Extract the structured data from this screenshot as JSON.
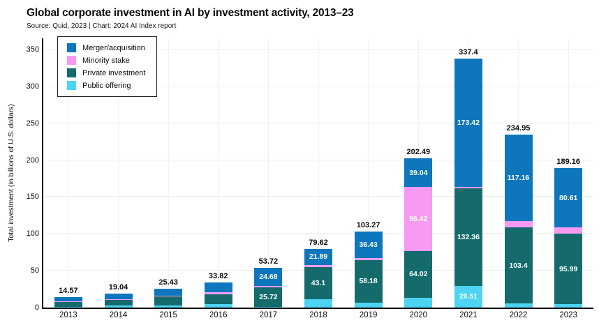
{
  "chart_data": {
    "type": "stacked_bar",
    "title": "Global corporate investment in AI by investment activity, 2013–23",
    "source_note": "Source: Quid, 2023 | Chart: 2024 AI Index report",
    "xlabel": "",
    "ylabel": "Total investment (in billions of U.S. dollars)",
    "ylim": [
      0,
      350
    ],
    "yticks": [
      0,
      50,
      100,
      150,
      200,
      250,
      300,
      350
    ],
    "grid": true,
    "legend_position": "top-left",
    "categories": [
      "2013",
      "2014",
      "2015",
      "2016",
      "2017",
      "2018",
      "2019",
      "2020",
      "2021",
      "2022",
      "2023"
    ],
    "stack_order_bottom_to_top": [
      "Public offering",
      "Private investment",
      "Minority stake",
      "Merger/acquisition"
    ],
    "series": [
      {
        "name": "Merger/acquisition",
        "color": "#0d76bd",
        "values": [
          5.9,
          7.9,
          9.7,
          13.2,
          24.68,
          21.89,
          36.43,
          39.04,
          173.42,
          117.16,
          80.61
        ],
        "value_labels": [
          null,
          null,
          null,
          null,
          "24.68",
          "21.89",
          "36.43",
          "39.04",
          "173.42",
          "117.16",
          "80.61"
        ]
      },
      {
        "name": "Minority stake",
        "color": "#f79af2",
        "values": [
          1.1,
          0.8,
          1.0,
          2.5,
          1.9,
          3.0,
          2.0,
          86.42,
          2.11,
          8.9,
          8.2
        ],
        "value_labels": [
          null,
          null,
          null,
          null,
          null,
          null,
          null,
          "86.42",
          null,
          null,
          null
        ]
      },
      {
        "name": "Private investment",
        "color": "#156b6b",
        "values": [
          6.87,
          7.9,
          12.0,
          13.5,
          25.72,
          43.1,
          58.18,
          64.02,
          132.36,
          103.4,
          95.99
        ],
        "value_labels": [
          null,
          null,
          null,
          null,
          "25.72",
          "43.1",
          "58.18",
          "64.02",
          "132.36",
          "103.4",
          "95.99"
        ]
      },
      {
        "name": "Public offering",
        "color": "#4dd4f3",
        "values": [
          0.7,
          2.44,
          2.73,
          4.62,
          1.42,
          11.63,
          6.66,
          13.01,
          29.51,
          5.49,
          4.36
        ],
        "value_labels": [
          null,
          null,
          null,
          null,
          null,
          null,
          null,
          null,
          "29.51",
          null,
          null
        ]
      }
    ],
    "totals": [
      14.57,
      19.04,
      25.43,
      33.82,
      53.72,
      79.62,
      103.27,
      202.49,
      337.4,
      234.95,
      189.16
    ]
  }
}
